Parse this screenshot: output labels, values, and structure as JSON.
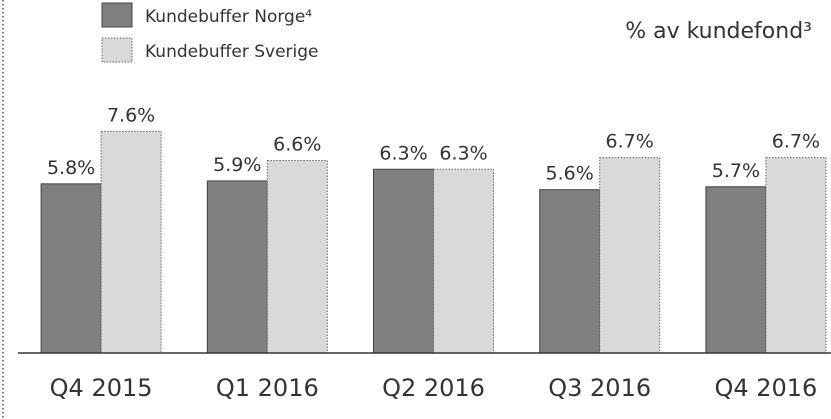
{
  "chart_data": {
    "type": "bar",
    "title": "% av kundefond³",
    "categories": [
      "Q4 2015",
      "Q1 2016",
      "Q2 2016",
      "Q3 2016",
      "Q4 2016"
    ],
    "series": [
      {
        "name": "Kundebuffer Norge⁴",
        "color": "#7f7f7f",
        "values": [
          5.8,
          5.9,
          6.3,
          5.6,
          5.7
        ],
        "value_labels": [
          "5.8%",
          "5.9%",
          "6.3%",
          "5.6%",
          "5.7%"
        ]
      },
      {
        "name": "Kundebuffer Sverige",
        "color": "#d9d9d9",
        "values": [
          7.6,
          6.6,
          6.3,
          6.7,
          6.7
        ],
        "value_labels": [
          "7.6%",
          "6.6%",
          "6.3%",
          "6.7%",
          "6.7%"
        ]
      }
    ],
    "ylim": [
      0,
      12
    ],
    "legend": "upper left"
  }
}
